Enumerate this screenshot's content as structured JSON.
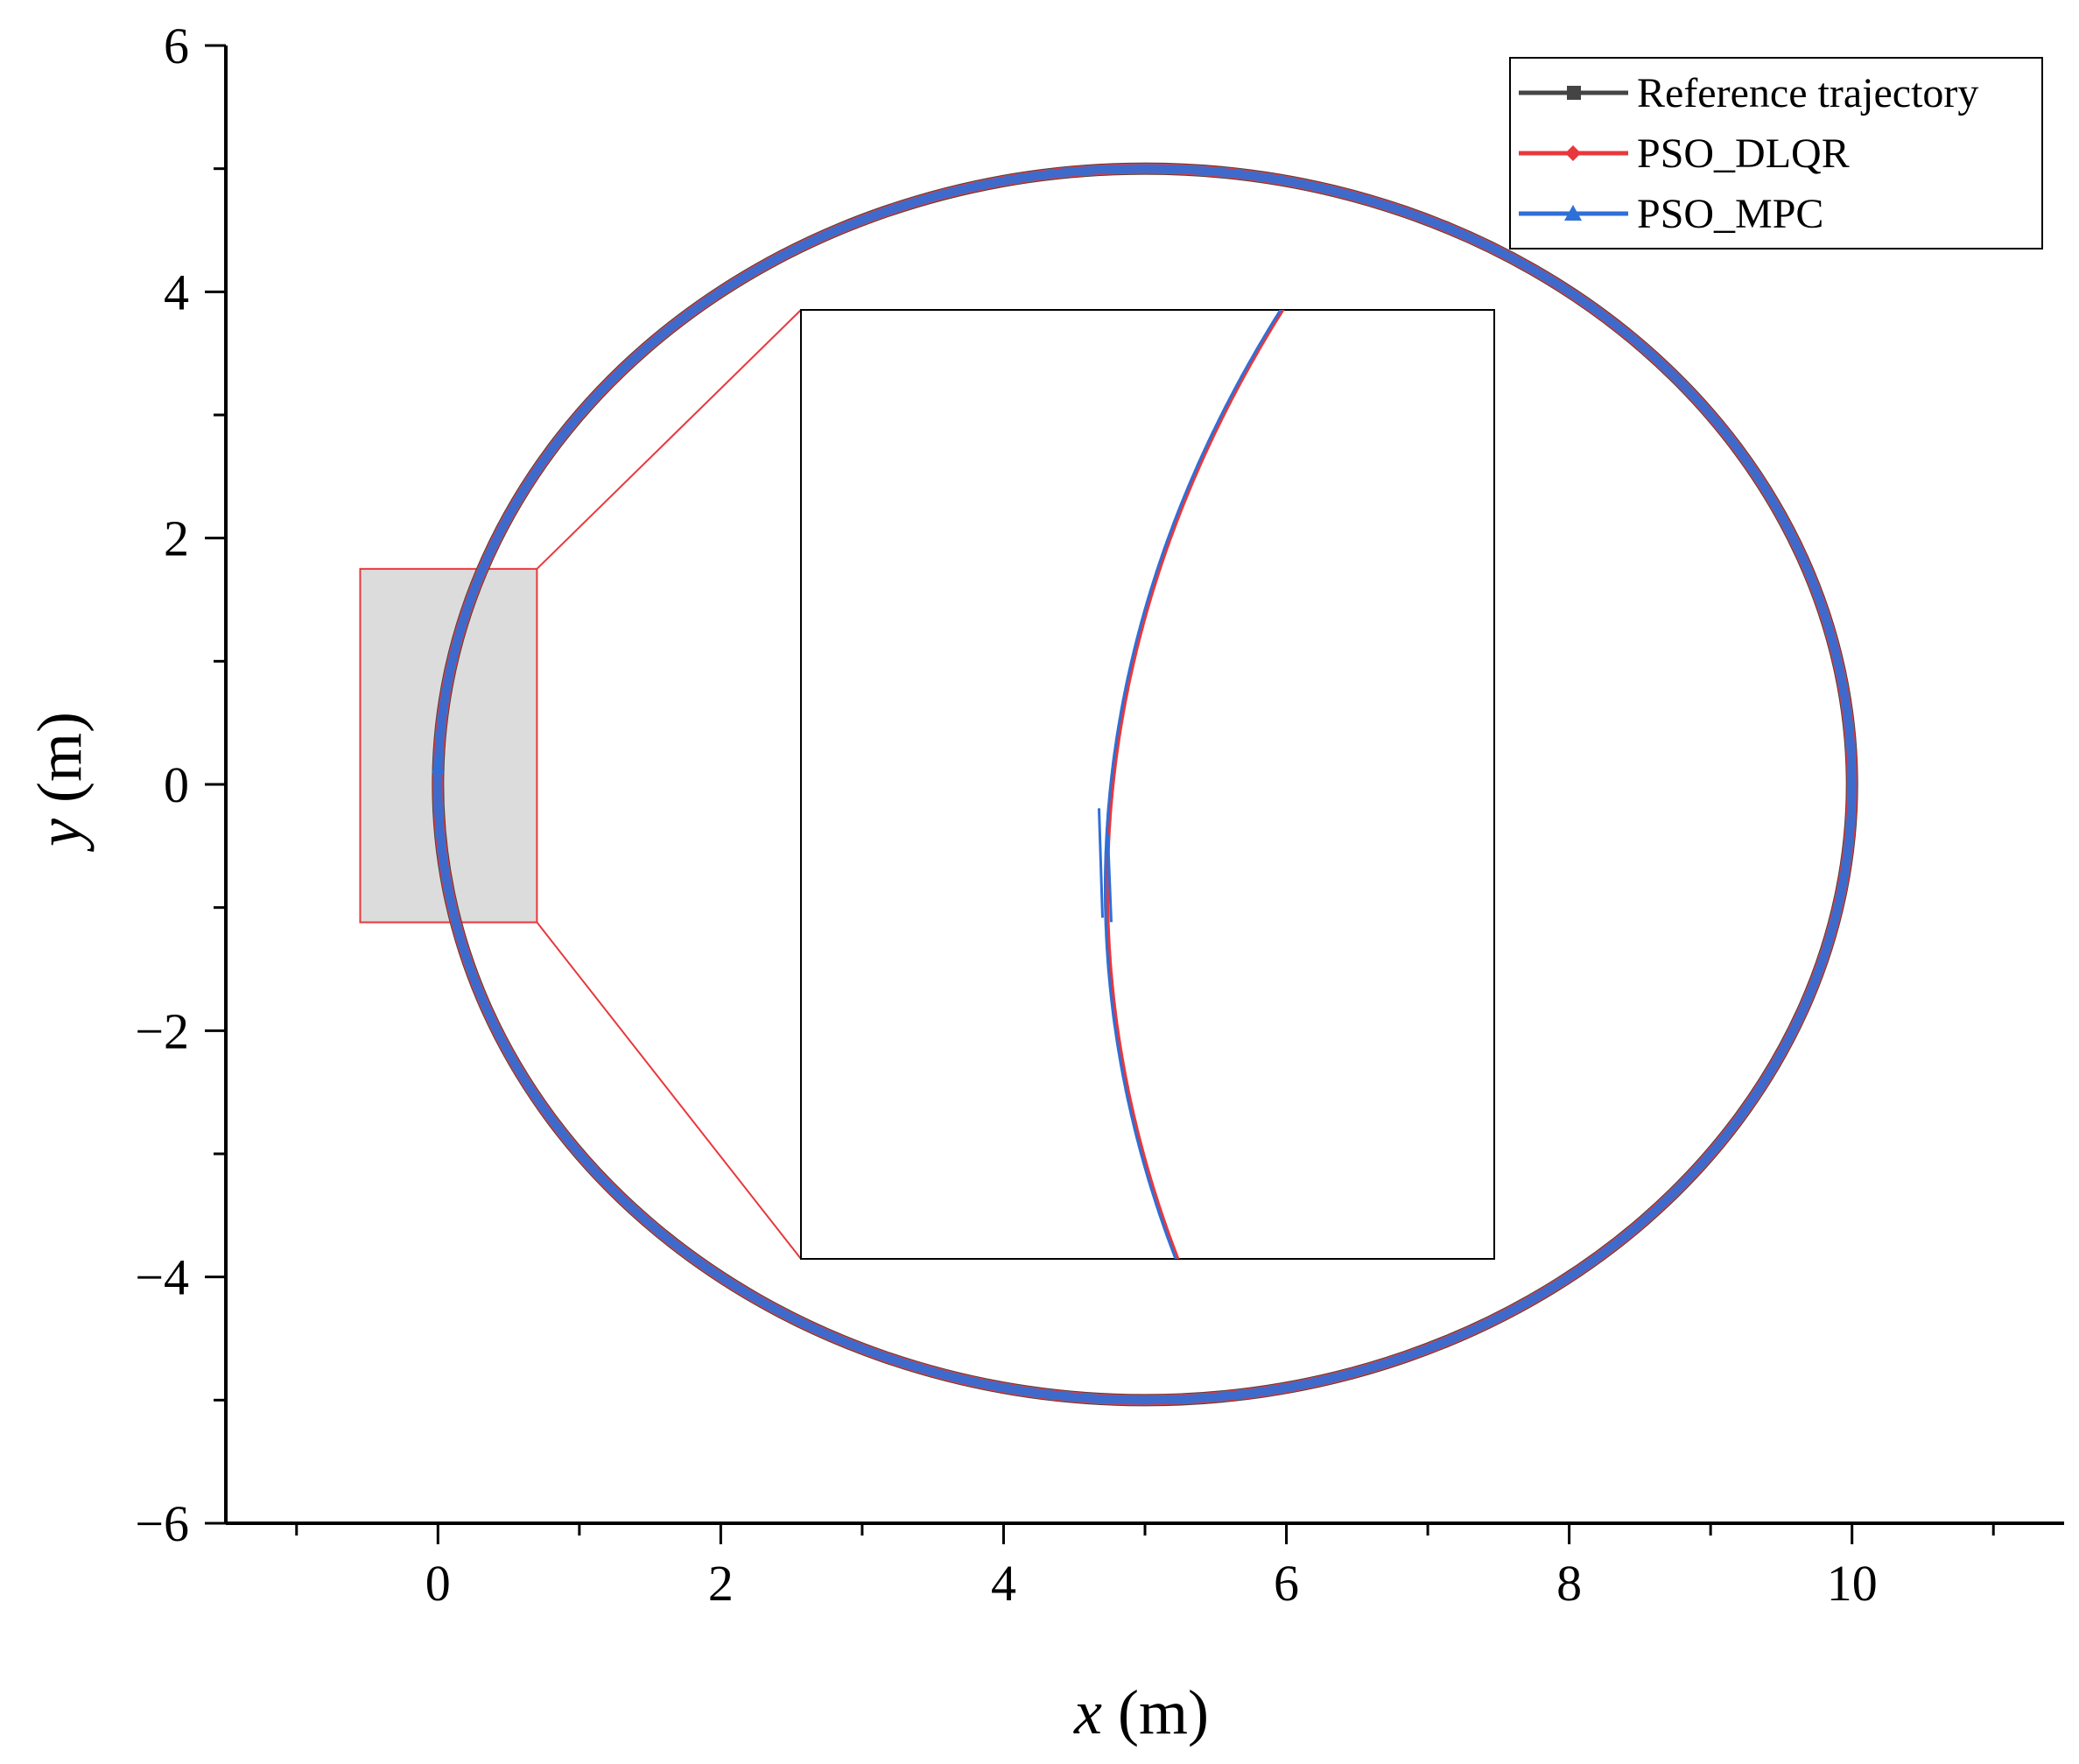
{
  "chart_data": {
    "type": "line",
    "x_axis": {
      "label_var": "x",
      "label_unit": " (m)",
      "range": [
        -1.5,
        11.5
      ],
      "major_ticks": [
        0,
        2,
        4,
        6,
        8,
        10
      ],
      "major_tick_labels": [
        "0",
        "2",
        "4",
        "6",
        "8",
        "10"
      ],
      "minor_step": 1
    },
    "y_axis": {
      "label_var": "y",
      "label_unit": " (m)",
      "range": [
        -6,
        6
      ],
      "major_ticks": [
        -6,
        -4,
        -2,
        0,
        2,
        4,
        6
      ],
      "major_tick_labels": [
        "−6",
        "−4",
        "−2",
        "0",
        "2",
        "4",
        "6"
      ],
      "minor_step": 1
    },
    "grid": false,
    "legend": {
      "position": "top-right",
      "entries": [
        "Reference trajectory",
        "PSO_DLQR",
        "PSO_MPC"
      ]
    },
    "series": [
      {
        "name": "Reference trajectory",
        "color": "#444444",
        "marker": "square",
        "shape": "circle",
        "center": [
          5,
          0
        ],
        "radius": 5
      },
      {
        "name": "PSO_DLQR",
        "color": "#e8383d",
        "marker": "diamond",
        "shape": "circle",
        "center": [
          5,
          0
        ],
        "radius": 5
      },
      {
        "name": "PSO_MPC",
        "color": "#2f6fd8",
        "marker": "triangle",
        "shape": "circle",
        "center": [
          5,
          0
        ],
        "radius": 5,
        "start_point": [
          0,
          0.15
        ]
      }
    ],
    "zoom_region": {
      "x_range": [
        -0.55,
        0.7
      ],
      "y_range": [
        -1.12,
        1.75
      ],
      "fill_color": "#dcdcdc",
      "border_color": "#e8383d"
    }
  }
}
